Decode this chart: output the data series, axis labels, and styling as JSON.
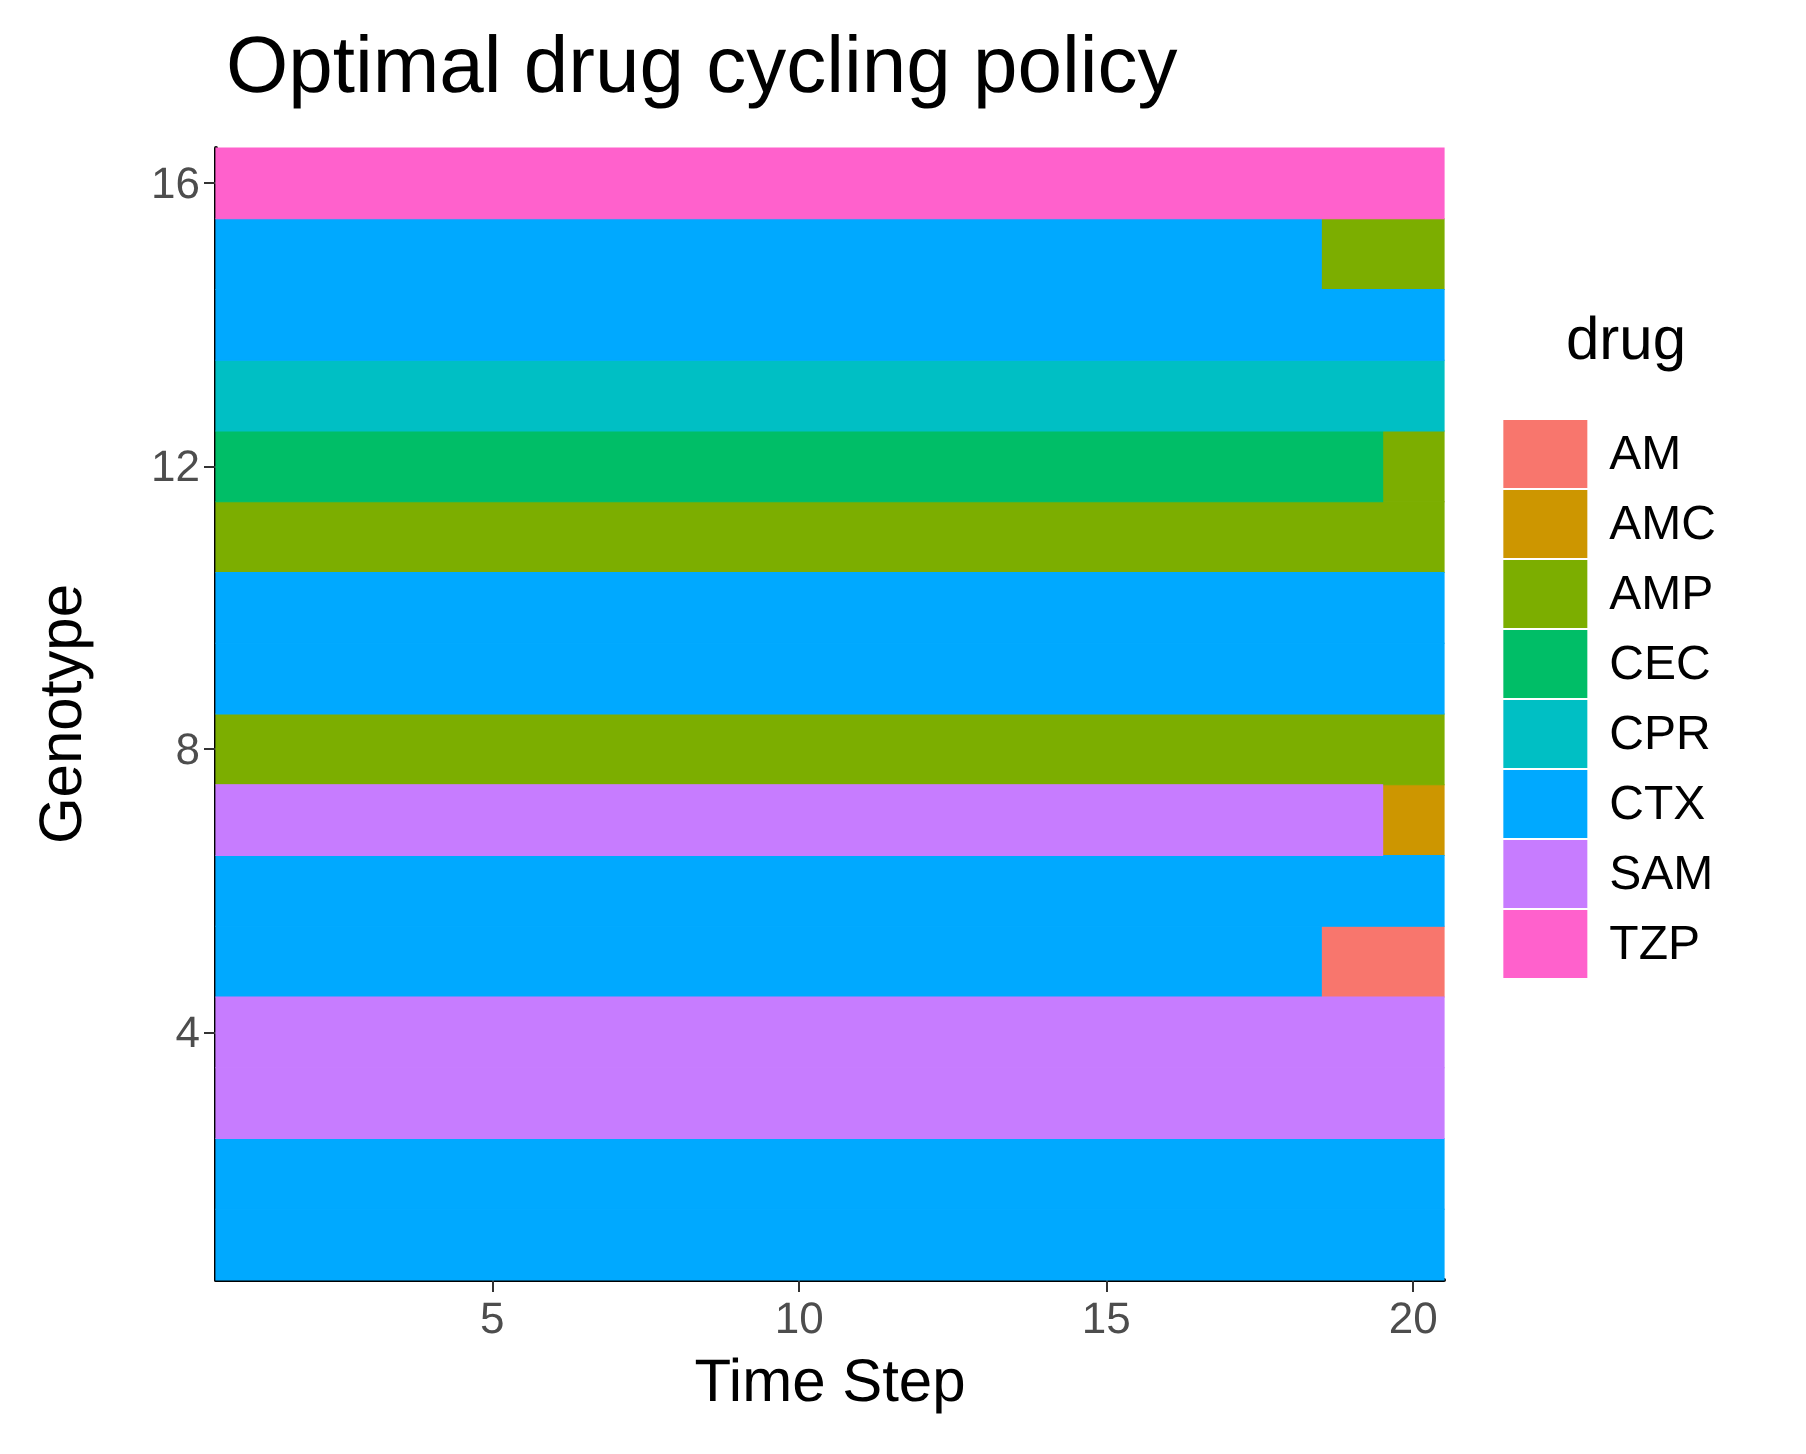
{
  "chart_data": {
    "type": "bar",
    "orientation": "horizontal",
    "title": "Optimal drug cycling policy",
    "xlabel": "Time Step",
    "ylabel": "Genotype",
    "legend_title": "drug",
    "legend": "right",
    "categories": [
      "16",
      null,
      null,
      null,
      "12",
      null,
      null,
      null,
      "8",
      null,
      null,
      null,
      "4",
      null,
      null,
      null
    ],
    "xlim": [
      0.5,
      20.5
    ],
    "xticks": [
      5,
      10,
      15,
      20
    ],
    "series": [
      {
        "name": "AM",
        "color": "#f8766d",
        "base": [
          null,
          null,
          null,
          null,
          null,
          null,
          null,
          null,
          null,
          null,
          null,
          18.5,
          null,
          null,
          null,
          null
        ],
        "values": [
          null,
          null,
          null,
          null,
          null,
          null,
          null,
          null,
          null,
          null,
          null,
          2,
          null,
          null,
          null,
          null
        ]
      },
      {
        "name": "AMC",
        "color": "#cd9600",
        "base": [
          null,
          null,
          null,
          null,
          null,
          null,
          null,
          null,
          null,
          19.5,
          null,
          null,
          null,
          null,
          null,
          null
        ],
        "values": [
          null,
          null,
          null,
          null,
          null,
          null,
          null,
          null,
          null,
          1,
          null,
          null,
          null,
          null,
          null,
          null
        ]
      },
      {
        "name": "AMP",
        "color": "#7cae00",
        "base": [
          null,
          18.5,
          null,
          null,
          19.5,
          0.5,
          null,
          null,
          0.5,
          null,
          null,
          null,
          null,
          null,
          null,
          null
        ],
        "values": [
          null,
          2,
          null,
          null,
          1,
          20,
          null,
          null,
          20,
          null,
          null,
          null,
          null,
          null,
          null,
          null
        ]
      },
      {
        "name": "CEC",
        "color": "#00be67",
        "base": [
          null,
          null,
          null,
          null,
          0.5,
          null,
          null,
          null,
          null,
          null,
          null,
          null,
          null,
          null,
          null,
          null
        ],
        "values": [
          null,
          null,
          null,
          null,
          19,
          null,
          null,
          null,
          null,
          null,
          null,
          null,
          null,
          null,
          null,
          null
        ]
      },
      {
        "name": "CPR",
        "color": "#00bfc4",
        "base": [
          null,
          null,
          null,
          0.5,
          null,
          null,
          null,
          null,
          null,
          null,
          null,
          null,
          null,
          null,
          null,
          null
        ],
        "values": [
          null,
          null,
          null,
          20,
          null,
          null,
          null,
          null,
          null,
          null,
          null,
          null,
          null,
          null,
          null,
          null
        ]
      },
      {
        "name": "CTX",
        "color": "#00a9ff",
        "base": [
          null,
          0.5,
          0.5,
          null,
          null,
          null,
          0.5,
          0.5,
          null,
          null,
          0.5,
          0.5,
          null,
          null,
          0.5,
          0.5
        ],
        "values": [
          null,
          18,
          20,
          null,
          null,
          null,
          20,
          20,
          null,
          null,
          20,
          18,
          null,
          null,
          20,
          20
        ]
      },
      {
        "name": "SAM",
        "color": "#c77cff",
        "base": [
          null,
          null,
          null,
          null,
          null,
          null,
          null,
          null,
          null,
          0.5,
          null,
          null,
          0.5,
          0.5,
          null,
          null
        ],
        "values": [
          null,
          null,
          null,
          null,
          null,
          null,
          null,
          null,
          null,
          19,
          null,
          null,
          20,
          20,
          null,
          null
        ]
      },
      {
        "name": "TZP",
        "color": "#ff61cc",
        "base": [
          0.5,
          null,
          null,
          null,
          null,
          null,
          null,
          null,
          null,
          null,
          null,
          null,
          null,
          null,
          null,
          null
        ],
        "values": [
          20,
          null,
          null,
          null,
          null,
          null,
          null,
          null,
          null,
          null,
          null,
          null,
          null,
          null,
          null,
          null
        ]
      }
    ]
  }
}
